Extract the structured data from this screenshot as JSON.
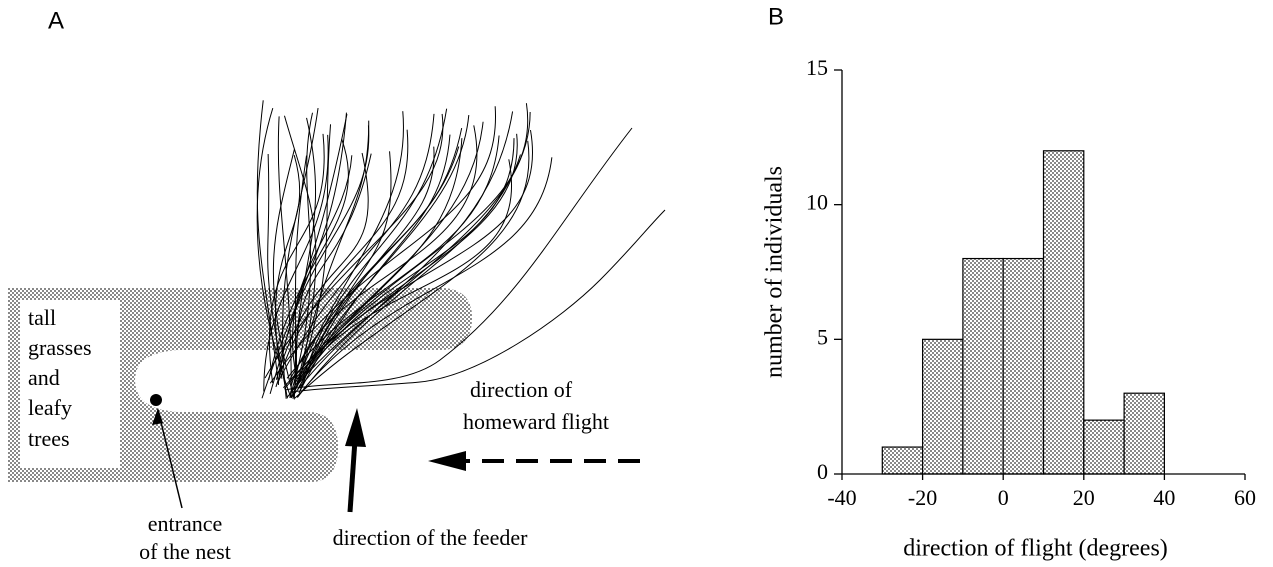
{
  "panel_a": {
    "label": "A",
    "region_label": [
      "tall",
      "grasses",
      "and",
      "leafy",
      "trees"
    ],
    "nest_label": [
      "entrance",
      "of the nest"
    ],
    "feeder_label": "direction of the feeder",
    "flight_label": [
      "direction of",
      "homeward flight"
    ]
  },
  "chart_data": {
    "type": "histogram",
    "panel_label": "B",
    "bins": [
      -30,
      -20,
      -10,
      0,
      10,
      20,
      30,
      40
    ],
    "values": [
      1,
      5,
      8,
      8,
      12,
      2,
      3
    ],
    "xlim": [
      -40,
      60
    ],
    "xticks": [
      -40,
      -20,
      0,
      20,
      40,
      60
    ],
    "ylim": [
      0,
      15
    ],
    "yticks": [
      0,
      5,
      10,
      15
    ],
    "xlabel": "direction of flight (degrees)",
    "ylabel": "number of individuals"
  }
}
